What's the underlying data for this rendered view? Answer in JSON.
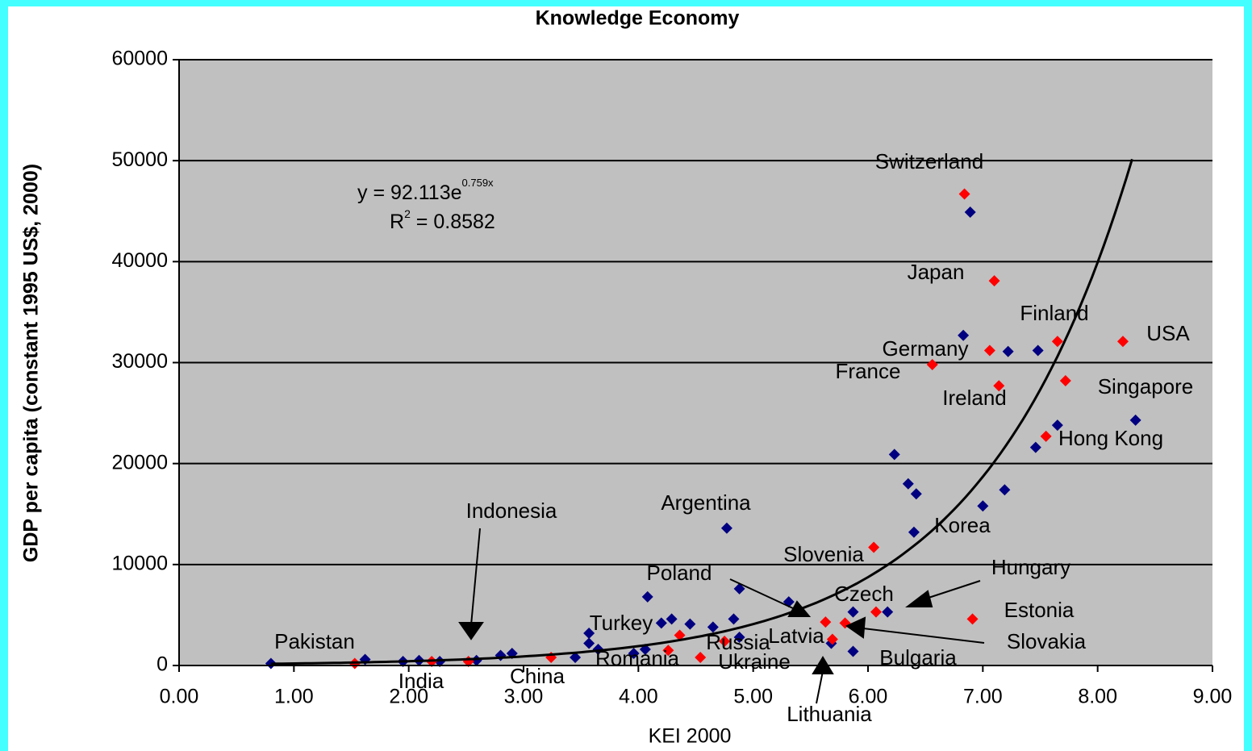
{
  "chart_data": {
    "type": "scatter",
    "title": "Knowledge Economy",
    "xlabel": "KEI 2000",
    "ylabel": "GDP per capita (constant 1995 US$, 2000)",
    "xlim": [
      0,
      9
    ],
    "ylim": [
      0,
      60000
    ],
    "xticks": [
      {
        "value": 0,
        "label": "0.00"
      },
      {
        "value": 1,
        "label": "1.00"
      },
      {
        "value": 2,
        "label": "2.00"
      },
      {
        "value": 3,
        "label": "3.00"
      },
      {
        "value": 4,
        "label": "4.00"
      },
      {
        "value": 5,
        "label": "5.00"
      },
      {
        "value": 6,
        "label": "6.00"
      },
      {
        "value": 7,
        "label": "7.00"
      },
      {
        "value": 8,
        "label": "8.00"
      },
      {
        "value": 9,
        "label": "9.00"
      }
    ],
    "yticks": [
      0,
      10000,
      20000,
      30000,
      40000,
      50000,
      60000
    ],
    "grid": true,
    "series": [
      {
        "color": "#000080",
        "x": [
          0.8,
          1.62,
          1.95,
          2.09,
          2.27,
          2.59,
          2.8,
          2.9,
          3.45,
          3.57,
          3.57,
          3.65,
          3.96,
          4.06,
          4.08,
          4.2,
          4.29,
          4.45,
          4.65,
          4.77,
          4.83,
          4.88,
          4.88,
          5.31,
          5.68,
          5.87,
          5.87,
          6.17,
          6.23,
          6.35,
          6.42,
          6.4,
          6.83,
          6.89,
          7.0,
          7.22,
          7.19,
          7.48,
          7.46,
          7.65,
          8.33
        ],
        "values": [
          200,
          600,
          400,
          500,
          400,
          500,
          1000,
          1200,
          800,
          3200,
          2200,
          1600,
          1200,
          1600,
          6800,
          4200,
          4600,
          4100,
          3800,
          13600,
          4600,
          7600,
          2800,
          6300,
          2200,
          5300,
          1400,
          5300,
          20900,
          18000,
          17000,
          13200,
          32700,
          44900,
          15800,
          31100,
          17400,
          31200,
          21600,
          23800,
          24300
        ]
      },
      {
        "color": "#ff0000",
        "x": [
          1.53,
          2.2,
          2.52,
          3.24,
          4.26,
          4.36,
          4.54,
          4.75,
          5.63,
          5.8,
          5.69,
          6.05,
          6.07,
          6.56,
          6.84,
          6.91,
          7.06,
          7.1,
          7.14,
          7.55,
          7.65,
          7.72,
          8.22
        ],
        "values": [
          200,
          400,
          400,
          800,
          1500,
          3000,
          800,
          2400,
          4300,
          4200,
          2600,
          11700,
          5300,
          29800,
          46700,
          4600,
          31200,
          38100,
          27700,
          22700,
          32100,
          28200,
          32100
        ]
      }
    ],
    "trendline": {
      "a": 92.113,
      "b": 0.759,
      "xrange": [
        0.8,
        8.3
      ],
      "equation": "y = 92.113e",
      "exponent": "0.759x",
      "r2_symbol": "R",
      "r2_power": "2",
      "r2_value": " = 0.8582"
    },
    "annotations": [
      "Switzerland",
      "Japan",
      "Finland",
      "USA",
      "Germany",
      "France",
      "Singapore",
      "Ireland",
      "Hong Kong",
      "Argentina",
      "Indonesia",
      "Korea",
      "Slovenia",
      "Hungary",
      "Poland",
      "Czech",
      "Estonia",
      "Turkey",
      "Latvia",
      "Russia",
      "Slovakia",
      "Pakistan",
      "India",
      "China",
      "Romania",
      "Ukraine",
      "Bulgaria",
      "Lithuania"
    ]
  }
}
